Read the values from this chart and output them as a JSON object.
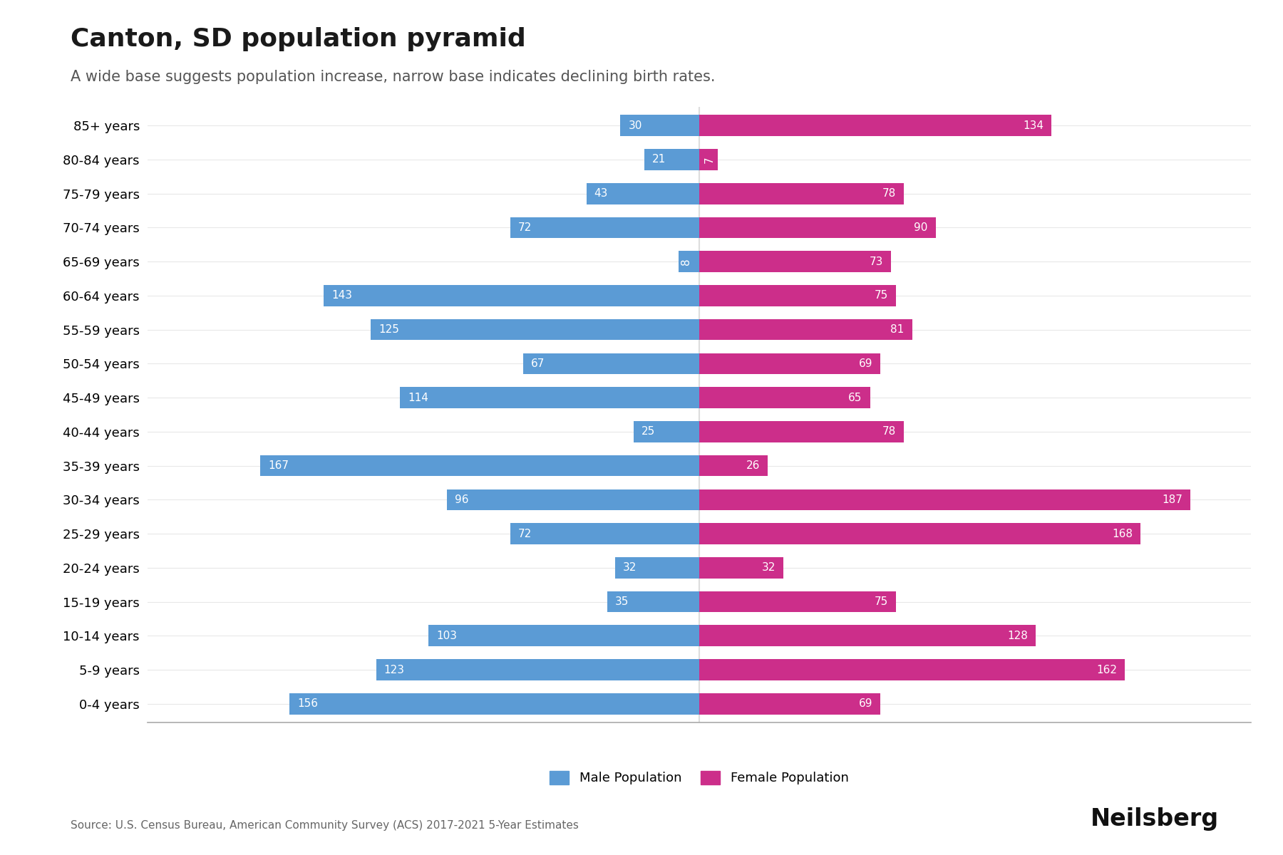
{
  "title": "Canton, SD population pyramid",
  "subtitle": "A wide base suggests population increase, narrow base indicates declining birth rates.",
  "source": "Source: U.S. Census Bureau, American Community Survey (ACS) 2017-2021 5-Year Estimates",
  "watermark": "Neilsberg",
  "age_groups": [
    "0-4 years",
    "5-9 years",
    "10-14 years",
    "15-19 years",
    "20-24 years",
    "25-29 years",
    "30-34 years",
    "35-39 years",
    "40-44 years",
    "45-49 years",
    "50-54 years",
    "55-59 years",
    "60-64 years",
    "65-69 years",
    "70-74 years",
    "75-79 years",
    "80-84 years",
    "85+ years"
  ],
  "male": [
    156,
    123,
    103,
    35,
    32,
    72,
    96,
    167,
    25,
    114,
    67,
    125,
    143,
    8,
    72,
    43,
    21,
    30
  ],
  "female": [
    69,
    162,
    128,
    75,
    32,
    168,
    187,
    26,
    78,
    65,
    69,
    81,
    75,
    73,
    90,
    78,
    7,
    134
  ],
  "male_color": "#5B9BD5",
  "female_color": "#CC2E8A",
  "bg_color": "#FFFFFF",
  "title_fontsize": 26,
  "subtitle_fontsize": 15,
  "ytick_fontsize": 13,
  "bar_label_fontsize": 11,
  "source_fontsize": 11,
  "watermark_fontsize": 24,
  "legend_fontsize": 13,
  "xlim": 210,
  "legend_label_male": "Male Population",
  "legend_label_female": "Female Population"
}
